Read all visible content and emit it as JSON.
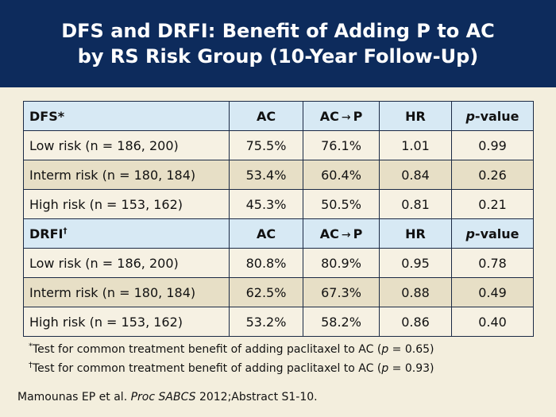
{
  "title": {
    "line1": "DFS and DRFI: Benefit of Adding P to AC",
    "line2": "by RS Risk Group (10-Year Follow-Up)"
  },
  "table": {
    "sections": [
      {
        "header": {
          "label": "DFS",
          "label_mark": "*",
          "col_ac": "AC",
          "col_acp_left": "AC",
          "col_acp_arrow": "→",
          "col_acp_right": "P",
          "col_hr": "HR",
          "col_p_italic": "p",
          "col_p_rest": "-value"
        },
        "rows": [
          {
            "label": "Low risk (n = 186, 200)",
            "ac": "75.5%",
            "acp": "76.1%",
            "hr": "1.01",
            "p": "0.99"
          },
          {
            "label": "Interm risk (n = 180, 184)",
            "ac": "53.4%",
            "acp": "60.4%",
            "hr": "0.84",
            "p": "0.26"
          },
          {
            "label": "High risk (n = 153, 162)",
            "ac": "45.3%",
            "acp": "50.5%",
            "hr": "0.81",
            "p": "0.21"
          }
        ]
      },
      {
        "header": {
          "label": "DRFI",
          "label_mark": "†",
          "col_ac": "AC",
          "col_acp_left": "AC",
          "col_acp_arrow": "→",
          "col_acp_right": "P",
          "col_hr": "HR",
          "col_p_italic": "p",
          "col_p_rest": "-value"
        },
        "rows": [
          {
            "label": "Low risk (n = 186, 200)",
            "ac": "80.8%",
            "acp": "80.9%",
            "hr": "0.95",
            "p": "0.78"
          },
          {
            "label": "Interm risk (n = 180, 184)",
            "ac": "62.5%",
            "acp": "67.3%",
            "hr": "0.88",
            "p": "0.49"
          },
          {
            "label": "High risk (n = 153, 162)",
            "ac": "53.2%",
            "acp": "58.2%",
            "hr": "0.86",
            "p": "0.40"
          }
        ]
      }
    ]
  },
  "footnotes": [
    {
      "symbol": "*",
      "text_before": "Test for common treatment benefit of adding paclitaxel to AC (",
      "italic": "p",
      "text_after": " = 0.65)"
    },
    {
      "symbol": "†",
      "text_before": "Test for common treatment benefit of adding paclitaxel to AC (",
      "italic": "p",
      "text_after": " = 0.93)"
    }
  ],
  "citation": {
    "before": "Mamounas EP et al. ",
    "italic": "Proc SABCS",
    "after": " 2012;Abstract S1-10."
  },
  "colors": {
    "title_bar": "#0d2b5c",
    "background": "#f3eedd",
    "header_row": "#d7e9f4",
    "row_light": "#f6f1e3",
    "row_dark": "#e7dfc6"
  }
}
